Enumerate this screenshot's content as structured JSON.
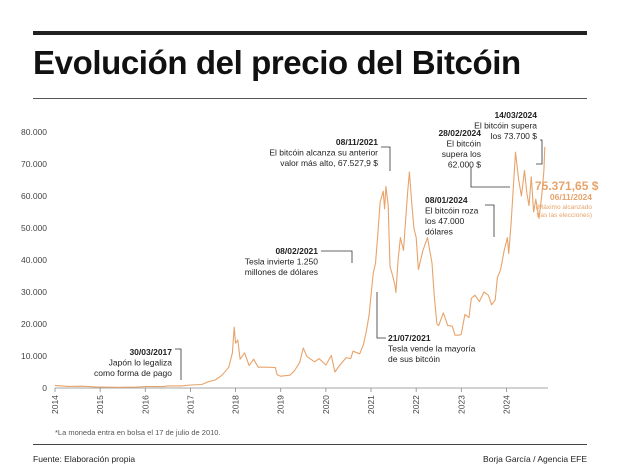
{
  "title": "Evolución del precio del Bitcóin",
  "footnote": "*La moneda entra en bolsa el 17 de julio de 2010.",
  "source": "Fuente: Elaboración propia",
  "credit": "Borja García / Agencia EFE",
  "colors": {
    "line": "#e8a36a",
    "accent": "#e8a36a",
    "text": "#222222",
    "muted": "#777777"
  },
  "chart_data": {
    "type": "line",
    "title": "Evolución del precio del Bitcóin",
    "xlabel": "",
    "ylabel": "",
    "xlim": [
      2014,
      2024.92
    ],
    "ylim": [
      0,
      80000
    ],
    "grid": false,
    "yticks": [
      {
        "value": 0,
        "label": "0"
      },
      {
        "value": 10000,
        "label": "10.000"
      },
      {
        "value": 20000,
        "label": "20.000"
      },
      {
        "value": 30000,
        "label": "30.000"
      },
      {
        "value": 40000,
        "label": "40.000"
      },
      {
        "value": 50000,
        "label": "50.000"
      },
      {
        "value": 60000,
        "label": "60.000"
      },
      {
        "value": 70000,
        "label": "70.000"
      },
      {
        "value": 80000,
        "label": "80.000"
      }
    ],
    "xticks": [
      "2014",
      "2015",
      "2016",
      "2017",
      "2018",
      "2019",
      "2020",
      "2021",
      "2022",
      "2023",
      "2024"
    ],
    "series": [
      {
        "points": [
          [
            2014.0,
            800
          ],
          [
            2014.3,
            500
          ],
          [
            2014.6,
            550
          ],
          [
            2014.9,
            350
          ],
          [
            2015.0,
            300
          ],
          [
            2015.4,
            230
          ],
          [
            2015.8,
            300
          ],
          [
            2016.0,
            430
          ],
          [
            2016.4,
            450
          ],
          [
            2016.5,
            650
          ],
          [
            2016.8,
            650
          ],
          [
            2017.0,
            950
          ],
          [
            2017.25,
            1100
          ],
          [
            2017.4,
            2000
          ],
          [
            2017.55,
            2500
          ],
          [
            2017.7,
            4000
          ],
          [
            2017.85,
            6500
          ],
          [
            2017.93,
            11000
          ],
          [
            2017.97,
            19000
          ],
          [
            2018.0,
            14000
          ],
          [
            2018.05,
            15000
          ],
          [
            2018.1,
            9000
          ],
          [
            2018.2,
            11000
          ],
          [
            2018.3,
            7000
          ],
          [
            2018.4,
            9000
          ],
          [
            2018.5,
            6500
          ],
          [
            2018.7,
            6500
          ],
          [
            2018.88,
            6400
          ],
          [
            2018.92,
            4200
          ],
          [
            2019.0,
            3700
          ],
          [
            2019.2,
            4000
          ],
          [
            2019.3,
            5300
          ],
          [
            2019.42,
            8000
          ],
          [
            2019.5,
            12500
          ],
          [
            2019.58,
            9800
          ],
          [
            2019.75,
            8200
          ],
          [
            2019.85,
            9200
          ],
          [
            2020.0,
            7200
          ],
          [
            2020.12,
            10200
          ],
          [
            2020.2,
            5000
          ],
          [
            2020.3,
            7000
          ],
          [
            2020.45,
            9500
          ],
          [
            2020.55,
            9200
          ],
          [
            2020.6,
            11500
          ],
          [
            2020.75,
            10700
          ],
          [
            2020.83,
            13500
          ],
          [
            2020.9,
            18000
          ],
          [
            2020.96,
            23000
          ],
          [
            2021.0,
            29000
          ],
          [
            2021.05,
            36000
          ],
          [
            2021.1,
            39000
          ],
          [
            2021.15,
            48000
          ],
          [
            2021.2,
            58000
          ],
          [
            2021.27,
            61500
          ],
          [
            2021.3,
            56000
          ],
          [
            2021.33,
            63000
          ],
          [
            2021.38,
            57000
          ],
          [
            2021.42,
            38000
          ],
          [
            2021.48,
            35000
          ],
          [
            2021.53,
            32000
          ],
          [
            2021.55,
            29800
          ],
          [
            2021.6,
            40000
          ],
          [
            2021.65,
            47000
          ],
          [
            2021.72,
            43000
          ],
          [
            2021.78,
            55000
          ],
          [
            2021.81,
            61000
          ],
          [
            2021.85,
            67500
          ],
          [
            2021.9,
            58000
          ],
          [
            2021.95,
            50000
          ],
          [
            2022.0,
            47000
          ],
          [
            2022.05,
            37000
          ],
          [
            2022.15,
            43000
          ],
          [
            2022.25,
            47000
          ],
          [
            2022.35,
            39000
          ],
          [
            2022.4,
            29000
          ],
          [
            2022.46,
            20000
          ],
          [
            2022.5,
            19500
          ],
          [
            2022.6,
            23500
          ],
          [
            2022.7,
            19500
          ],
          [
            2022.8,
            19300
          ],
          [
            2022.86,
            16500
          ],
          [
            2022.95,
            16500
          ],
          [
            2023.0,
            16800
          ],
          [
            2023.08,
            23000
          ],
          [
            2023.17,
            22000
          ],
          [
            2023.22,
            28000
          ],
          [
            2023.3,
            29000
          ],
          [
            2023.4,
            27000
          ],
          [
            2023.5,
            30000
          ],
          [
            2023.6,
            29000
          ],
          [
            2023.67,
            26000
          ],
          [
            2023.75,
            27500
          ],
          [
            2023.8,
            34500
          ],
          [
            2023.87,
            37000
          ],
          [
            2023.95,
            43000
          ],
          [
            2024.02,
            47000
          ],
          [
            2024.05,
            42000
          ],
          [
            2024.1,
            51000
          ],
          [
            2024.15,
            62000
          ],
          [
            2024.2,
            73700
          ],
          [
            2024.27,
            65000
          ],
          [
            2024.33,
            60000
          ],
          [
            2024.4,
            68000
          ],
          [
            2024.45,
            61000
          ],
          [
            2024.5,
            57000
          ],
          [
            2024.55,
            66000
          ],
          [
            2024.6,
            55000
          ],
          [
            2024.65,
            59000
          ],
          [
            2024.72,
            53000
          ],
          [
            2024.78,
            60000
          ],
          [
            2024.83,
            68000
          ],
          [
            2024.85,
            75371
          ]
        ]
      }
    ],
    "annotations": [
      {
        "date": "30/03/2017",
        "text": [
          "Japón lo legaliza",
          "como forma de pago"
        ]
      },
      {
        "date": "08/02/2021",
        "text": [
          "Tesla invierte 1.250",
          "millones de dólares"
        ]
      },
      {
        "date": "08/11/2021",
        "text": [
          "El bitcóin alcanza su anterior",
          "valor más alto, 67.527,9 $"
        ]
      },
      {
        "date": "21/07/2021",
        "text": [
          "Tesla vende la mayoría",
          "de sus bitcóin"
        ]
      },
      {
        "date": "28/02/2024",
        "text": [
          "El bitcóin",
          "supera los",
          "62.000 $"
        ]
      },
      {
        "date": "14/03/2024",
        "text": [
          "El bitcóin supera",
          "los 73.700 $"
        ]
      },
      {
        "date": "08/01/2024",
        "text": [
          "El bitcóin roza",
          "los 47.000",
          "dólares"
        ]
      }
    ],
    "current": {
      "value": "75.371,65 $",
      "date": "06/11/2024",
      "note": [
        "(Máximo alcanzado",
        "tras las elecciones)"
      ]
    }
  }
}
